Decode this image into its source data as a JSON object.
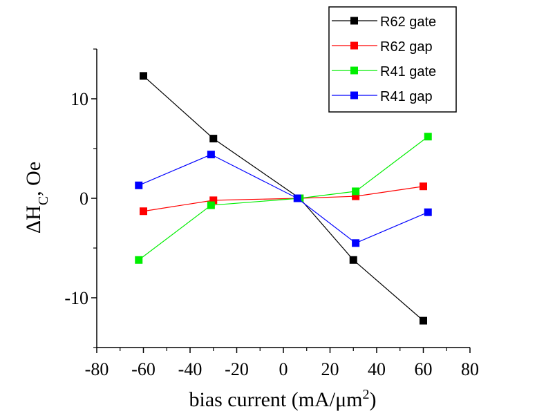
{
  "chart_data": {
    "type": "line",
    "xlabel": "bias current (mA/μm²)",
    "ylabel": "ΔHc, Oe",
    "xlim": [
      -80,
      80
    ],
    "ylim": [
      -15,
      15
    ],
    "xticks": [
      -80,
      -60,
      -40,
      -20,
      0,
      20,
      40,
      60,
      80
    ],
    "xtick_labels": [
      "-80",
      "-60",
      "-40",
      "-20",
      "0",
      "20",
      "40",
      "60",
      "80"
    ],
    "yticks": [
      -10,
      0,
      10
    ],
    "ytick_labels": [
      "-10",
      "0",
      "10"
    ],
    "legend_position": "top-right",
    "grid": false,
    "series": [
      {
        "name": "R62 gate",
        "color": "#000000",
        "x": [
          -60,
          -30,
          7,
          30,
          60
        ],
        "y": [
          12.3,
          6.0,
          0.0,
          -6.2,
          -12.3
        ]
      },
      {
        "name": "R62 gap",
        "color": "#ff0000",
        "x": [
          -60,
          -30,
          7,
          31,
          60
        ],
        "y": [
          -1.3,
          -0.2,
          0.0,
          0.2,
          1.2
        ]
      },
      {
        "name": "R41 gate",
        "color": "#00ee00",
        "x": [
          -62,
          -31,
          7,
          31,
          62
        ],
        "y": [
          -6.2,
          -0.7,
          0.0,
          0.7,
          6.2
        ]
      },
      {
        "name": "R41 gap",
        "color": "#0000ff",
        "x": [
          -62,
          -31,
          6,
          31,
          62
        ],
        "y": [
          1.3,
          4.4,
          0.0,
          -4.5,
          -1.4
        ]
      }
    ]
  }
}
